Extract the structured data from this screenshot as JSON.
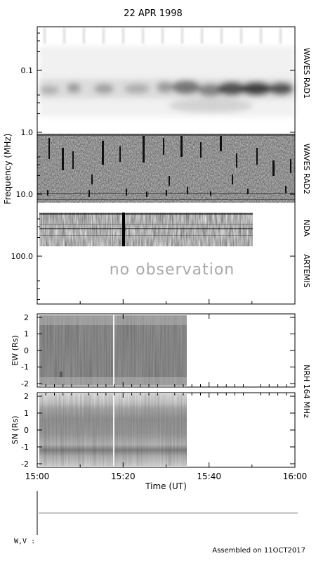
{
  "chart_data": [
    {
      "type": "heatmap",
      "title": "22 APR 1998",
      "ylabel": "Frequency (MHz)",
      "y_scale": "log",
      "y_ticks": [
        "0.1",
        "1.0",
        "10.0",
        "100.0"
      ],
      "panels": [
        {
          "label": "WAVES RAD1"
        },
        {
          "label": "WAVES RAD2"
        },
        {
          "label": "NDA"
        },
        {
          "label": "ARTEMIS",
          "note": "no observation"
        }
      ]
    },
    {
      "type": "heatmap",
      "ylabel": "EW (Rs)",
      "ylim": [
        -2,
        2
      ],
      "y_ticks": [
        "2",
        "1",
        "0",
        "-1",
        "-2"
      ]
    },
    {
      "type": "heatmap",
      "ylabel": "SN (Rs)",
      "ylim": [
        -2,
        2
      ],
      "y_ticks": [
        "2",
        "1",
        "0",
        "-1",
        "-2"
      ],
      "side_label": "NRH 164 MHz"
    }
  ],
  "x_axis": {
    "xlabel": "Time (UT)",
    "xlim": [
      "15:00",
      "16:00"
    ],
    "tick_labels": [
      "15:00",
      "15:20",
      "15:40",
      "16:00"
    ]
  },
  "footer": {
    "wv_label": "W,V :",
    "assembled": "Assembled on 11OCT2017"
  }
}
